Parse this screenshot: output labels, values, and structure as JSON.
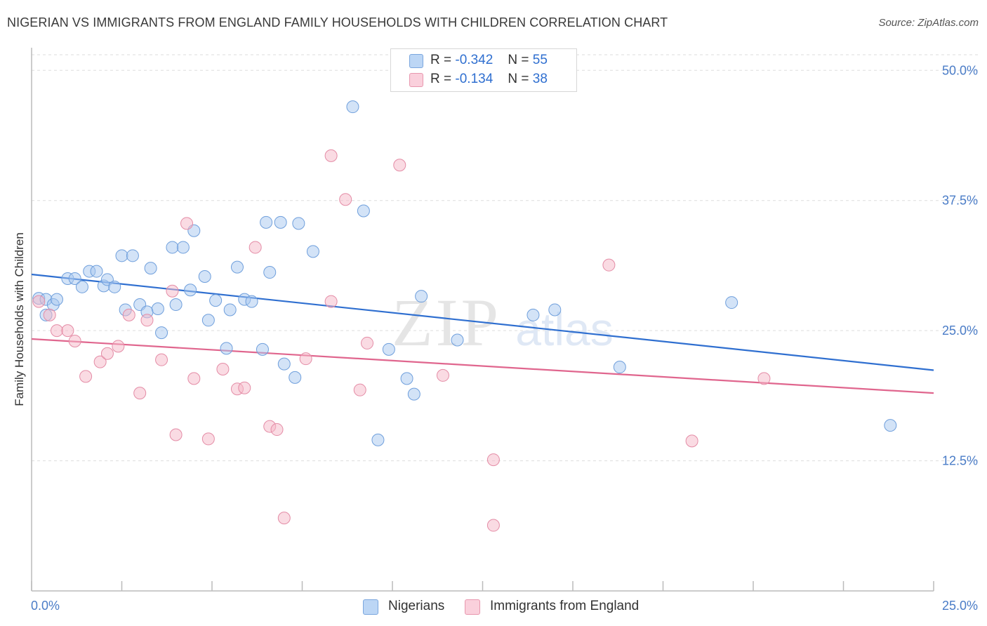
{
  "header": {
    "title": "NIGERIAN VS IMMIGRANTS FROM ENGLAND FAMILY HOUSEHOLDS WITH CHILDREN CORRELATION CHART",
    "source": "Source: ZipAtlas.com"
  },
  "watermark": {
    "zip": "ZIP",
    "atlas": "atlas"
  },
  "legend_stats": [
    {
      "r_label": "R =",
      "r_value": "-0.342",
      "n_label": "N =",
      "n_value": "55",
      "color": "#a8c8f0"
    },
    {
      "r_label": "R =",
      "r_value": "-0.134",
      "n_label": "N =",
      "n_value": "38",
      "color": "#f5b8c8"
    }
  ],
  "bottom_legend": [
    {
      "label": "Nigerians",
      "color": "#a8c8f0"
    },
    {
      "label": "Immigrants from England",
      "color": "#f5b8c8"
    }
  ],
  "chart_data": {
    "type": "scatter",
    "title": "NIGERIAN VS IMMIGRANTS FROM ENGLAND FAMILY HOUSEHOLDS WITH CHILDREN CORRELATION CHART",
    "xlabel": "",
    "ylabel": "Family Households with Children",
    "xlim": [
      0,
      25
    ],
    "ylim": [
      0,
      51.5
    ],
    "x_tick_labels": [
      "0.0%",
      "25.0%"
    ],
    "y_ticks": [
      12.5,
      25,
      37.5,
      50
    ],
    "y_tick_labels": [
      "12.5%",
      "25.0%",
      "37.5%",
      "50.0%"
    ],
    "grid": true,
    "legend_position": "top-center",
    "series": [
      {
        "name": "Nigerians",
        "color": "#a8c8f0",
        "stroke": "#6f9fdc",
        "trend_color": "#2f6fd0",
        "trend": {
          "x": [
            0,
            25
          ],
          "y": [
            30.4,
            21.2
          ]
        },
        "points": [
          [
            0.2,
            28.1
          ],
          [
            0.4,
            28.0
          ],
          [
            0.4,
            26.5
          ],
          [
            0.6,
            27.5
          ],
          [
            0.7,
            28.0
          ],
          [
            1.0,
            30.0
          ],
          [
            1.2,
            30.0
          ],
          [
            1.4,
            29.2
          ],
          [
            1.6,
            30.7
          ],
          [
            1.8,
            30.7
          ],
          [
            2.0,
            29.3
          ],
          [
            2.1,
            29.9
          ],
          [
            2.3,
            29.2
          ],
          [
            2.5,
            32.2
          ],
          [
            2.6,
            27.0
          ],
          [
            2.8,
            32.2
          ],
          [
            3.0,
            27.5
          ],
          [
            3.2,
            26.8
          ],
          [
            3.3,
            31.0
          ],
          [
            3.5,
            27.1
          ],
          [
            3.6,
            24.8
          ],
          [
            3.9,
            33.0
          ],
          [
            4.0,
            27.5
          ],
          [
            4.2,
            33.0
          ],
          [
            4.4,
            28.9
          ],
          [
            4.5,
            34.6
          ],
          [
            4.8,
            30.2
          ],
          [
            4.9,
            26.0
          ],
          [
            5.1,
            27.9
          ],
          [
            5.4,
            23.3
          ],
          [
            5.5,
            27.0
          ],
          [
            5.7,
            31.1
          ],
          [
            5.9,
            28.0
          ],
          [
            6.1,
            27.8
          ],
          [
            6.4,
            23.2
          ],
          [
            6.5,
            35.4
          ],
          [
            6.6,
            30.6
          ],
          [
            6.9,
            35.4
          ],
          [
            7.0,
            21.8
          ],
          [
            7.3,
            20.5
          ],
          [
            7.4,
            35.3
          ],
          [
            7.8,
            32.6
          ],
          [
            8.9,
            46.5
          ],
          [
            9.2,
            36.5
          ],
          [
            9.6,
            14.5
          ],
          [
            9.9,
            23.2
          ],
          [
            10.4,
            20.4
          ],
          [
            10.6,
            18.9
          ],
          [
            10.8,
            28.3
          ],
          [
            11.8,
            24.1
          ],
          [
            13.9,
            26.5
          ],
          [
            14.5,
            27.0
          ],
          [
            16.3,
            21.5
          ],
          [
            19.4,
            27.7
          ],
          [
            23.8,
            15.9
          ]
        ]
      },
      {
        "name": "Immigrants from England",
        "color": "#f5b8c8",
        "stroke": "#e48ca6",
        "trend_color": "#e0668e",
        "trend": {
          "x": [
            0,
            25
          ],
          "y": [
            24.2,
            19.0
          ]
        },
        "points": [
          [
            0.2,
            27.8
          ],
          [
            0.5,
            26.5
          ],
          [
            0.7,
            25.0
          ],
          [
            1.0,
            25.0
          ],
          [
            1.2,
            24.0
          ],
          [
            1.5,
            20.6
          ],
          [
            1.9,
            22.0
          ],
          [
            2.1,
            22.8
          ],
          [
            2.4,
            23.5
          ],
          [
            2.7,
            26.5
          ],
          [
            3.0,
            19.0
          ],
          [
            3.2,
            26.0
          ],
          [
            3.6,
            22.2
          ],
          [
            3.9,
            28.8
          ],
          [
            4.0,
            15.0
          ],
          [
            4.3,
            35.3
          ],
          [
            4.5,
            20.4
          ],
          [
            4.9,
            14.6
          ],
          [
            5.3,
            21.3
          ],
          [
            5.7,
            19.4
          ],
          [
            5.9,
            19.5
          ],
          [
            6.2,
            33.0
          ],
          [
            6.6,
            15.8
          ],
          [
            6.8,
            15.5
          ],
          [
            7.0,
            7.0
          ],
          [
            7.6,
            22.3
          ],
          [
            8.3,
            27.8
          ],
          [
            8.3,
            41.8
          ],
          [
            8.7,
            37.6
          ],
          [
            9.1,
            19.3
          ],
          [
            9.3,
            23.8
          ],
          [
            10.2,
            40.9
          ],
          [
            11.4,
            20.7
          ],
          [
            12.8,
            6.3
          ],
          [
            12.8,
            12.6
          ],
          [
            16.0,
            31.3
          ],
          [
            18.3,
            14.4
          ],
          [
            20.3,
            20.4
          ]
        ]
      }
    ]
  }
}
